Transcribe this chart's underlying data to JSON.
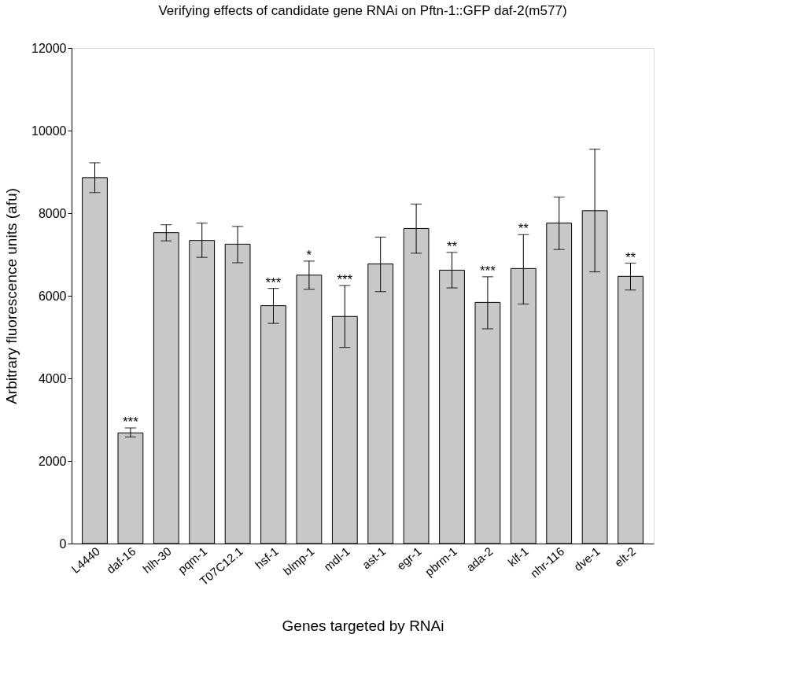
{
  "chart_data": {
    "type": "bar",
    "title": "Verifying effects of candidate gene RNAi on Pftn-1::GFP daf-2(m577)",
    "xlabel": "Genes targeted by RNAi",
    "ylabel": "Arbitrary fluorescence units (afu)",
    "categories": [
      "L4440",
      "daf-16",
      "hlh-30",
      "pqm-1",
      "T07C12.1",
      "hsf-1",
      "blmp-1",
      "mdl-1",
      "ast-1",
      "egr-1",
      "pbrm-1",
      "ada-2",
      "klf-1",
      "nhr-116",
      "dve-1",
      "elt-2"
    ],
    "values": [
      8860,
      2680,
      7530,
      7340,
      7250,
      5760,
      6500,
      5500,
      6770,
      7630,
      6620,
      5840,
      6660,
      7760,
      8060,
      6470
    ],
    "errors": [
      [
        8500,
        9220
      ],
      [
        2580,
        2800
      ],
      [
        7330,
        7720
      ],
      [
        6930,
        7760
      ],
      [
        6800,
        7680
      ],
      [
        5330,
        6180
      ],
      [
        6160,
        6840
      ],
      [
        4750,
        6250
      ],
      [
        6100,
        7420
      ],
      [
        7030,
        8220
      ],
      [
        6190,
        7050
      ],
      [
        5200,
        6460
      ],
      [
        5800,
        7480
      ],
      [
        7120,
        8390
      ],
      [
        6580,
        9550
      ],
      [
        6140,
        6790
      ]
    ],
    "color": "#c8c8c8",
    "ylim": [
      0,
      12000
    ],
    "yticks": [
      0,
      2000,
      4000,
      6000,
      8000,
      10000,
      12000
    ],
    "grid": false,
    "annotations": [
      {
        "text": "***",
        "x": "daf-16",
        "y": 2800
      },
      {
        "text": "***",
        "x": "hsf-1",
        "y": 6180
      },
      {
        "text": "*",
        "x": "blmp-1",
        "y": 6840
      },
      {
        "text": "***",
        "x": "mdl-1",
        "y": 6250
      },
      {
        "text": "**",
        "x": "pbrm-1",
        "y": 7050
      },
      {
        "text": "***",
        "x": "ada-2",
        "y": 6460
      },
      {
        "text": "**",
        "x": "klf-1",
        "y": 7480
      },
      {
        "text": "**",
        "x": "elt-2",
        "y": 6790
      }
    ]
  }
}
